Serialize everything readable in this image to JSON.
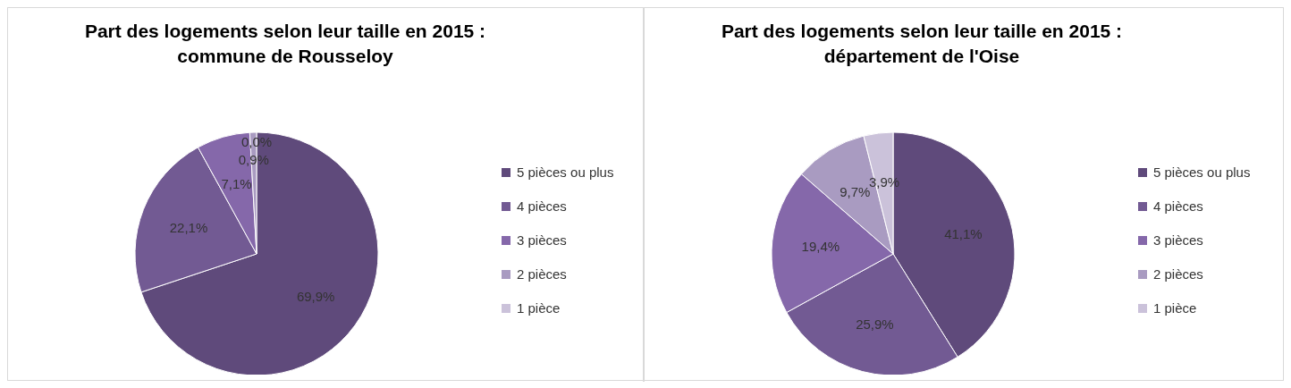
{
  "chart_data": [
    {
      "type": "pie",
      "title": "Part des logements selon leur taille en 2015 :\ncommune de Rousseloy",
      "categories": [
        "5 pièces ou plus",
        "4 pièces",
        "3 pièces",
        "2 pièces",
        "1 pièce"
      ],
      "values": [
        69.9,
        22.1,
        7.1,
        0.9,
        0.0
      ],
      "value_labels": [
        "69,9%",
        "22,1%",
        "7,1%",
        "0,9%",
        "0,0%"
      ],
      "colors": [
        "#5f4a7b",
        "#725a93",
        "#8568aa",
        "#a99bc1",
        "#cbc2da"
      ],
      "legend": "right"
    },
    {
      "type": "pie",
      "title": "Part des logements selon leur taille en 2015 :\ndépartement de l'Oise",
      "categories": [
        "5 pièces ou plus",
        "4 pièces",
        "3 pièces",
        "2 pièces",
        "1 pièce"
      ],
      "values": [
        41.1,
        25.9,
        19.4,
        9.7,
        3.9
      ],
      "value_labels": [
        "41,1%",
        "25,9%",
        "19,4%",
        "9,7%",
        "3,9%"
      ],
      "colors": [
        "#5f4a7b",
        "#725a93",
        "#8568aa",
        "#a99bc1",
        "#cbc2da"
      ],
      "legend": "right"
    }
  ]
}
